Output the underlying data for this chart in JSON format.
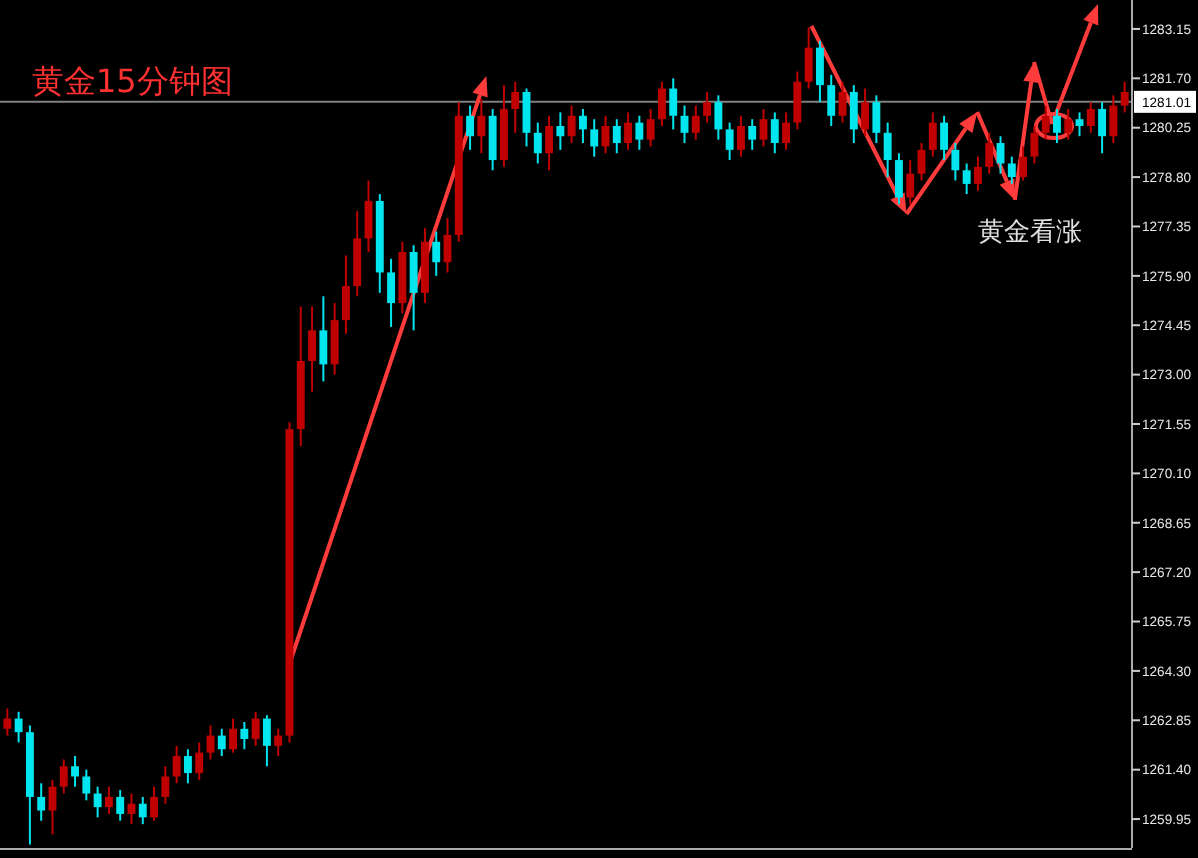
{
  "chart_data": {
    "type": "candlestick",
    "title": "黄金15分钟图",
    "annotations": [
      "黄金看涨"
    ],
    "categories": [
      null,
      null,
      null,
      null,
      null,
      null,
      null,
      null,
      null,
      null,
      null,
      null,
      null,
      null,
      null,
      null,
      null,
      null,
      null,
      null,
      null,
      null,
      null,
      null,
      null,
      null,
      null,
      null,
      null,
      null,
      null,
      null,
      null,
      null,
      null,
      null,
      null,
      null,
      null,
      null,
      null,
      null,
      null,
      null,
      null,
      null,
      null,
      null,
      null,
      null,
      null,
      null,
      null,
      null,
      null,
      null,
      null,
      null,
      null,
      null,
      null,
      null,
      null,
      null,
      null,
      null,
      null,
      null,
      null,
      null,
      null,
      null,
      null,
      null,
      null,
      null,
      null,
      null,
      null,
      null,
      null,
      null,
      null,
      null,
      null,
      null,
      null,
      null,
      null,
      null,
      null,
      null,
      null,
      null,
      null,
      null,
      null,
      null,
      null,
      null
    ],
    "ohlc": [
      [
        1262.6,
        1263.2,
        1262.4,
        1262.9
      ],
      [
        1262.9,
        1263.1,
        1262.2,
        1262.5
      ],
      [
        1262.5,
        1262.7,
        1259.2,
        1260.6
      ],
      [
        1260.6,
        1261.0,
        1259.9,
        1260.2
      ],
      [
        1260.2,
        1261.1,
        1259.5,
        1260.9
      ],
      [
        1260.9,
        1261.7,
        1260.7,
        1261.5
      ],
      [
        1261.5,
        1261.8,
        1260.9,
        1261.2
      ],
      [
        1261.2,
        1261.4,
        1260.5,
        1260.7
      ],
      [
        1260.7,
        1260.9,
        1260.0,
        1260.3
      ],
      [
        1260.3,
        1260.9,
        1260.1,
        1260.6
      ],
      [
        1260.6,
        1260.8,
        1259.9,
        1260.1
      ],
      [
        1260.1,
        1260.7,
        1259.8,
        1260.4
      ],
      [
        1260.4,
        1260.6,
        1259.8,
        1260.0
      ],
      [
        1260.0,
        1260.9,
        1259.9,
        1260.6
      ],
      [
        1260.6,
        1261.5,
        1260.4,
        1261.2
      ],
      [
        1261.2,
        1262.1,
        1261.0,
        1261.8
      ],
      [
        1261.8,
        1262.0,
        1261.0,
        1261.3
      ],
      [
        1261.3,
        1262.2,
        1261.1,
        1261.9
      ],
      [
        1261.9,
        1262.7,
        1261.7,
        1262.4
      ],
      [
        1262.4,
        1262.6,
        1261.8,
        1262.0
      ],
      [
        1262.0,
        1262.9,
        1261.9,
        1262.6
      ],
      [
        1262.6,
        1262.8,
        1262.0,
        1262.3
      ],
      [
        1262.3,
        1263.1,
        1262.1,
        1262.9
      ],
      [
        1262.9,
        1263.0,
        1261.5,
        1262.1
      ],
      [
        1262.1,
        1262.6,
        1261.8,
        1262.4
      ],
      [
        1262.4,
        1271.6,
        1262.2,
        1271.4
      ],
      [
        1271.4,
        1275.0,
        1270.9,
        1273.4
      ],
      [
        1273.4,
        1275.0,
        1272.5,
        1274.3
      ],
      [
        1274.3,
        1275.3,
        1272.8,
        1273.3
      ],
      [
        1273.3,
        1275.1,
        1273.0,
        1274.6
      ],
      [
        1274.6,
        1276.5,
        1274.2,
        1275.6
      ],
      [
        1275.6,
        1277.8,
        1275.3,
        1277.0
      ],
      [
        1277.0,
        1278.7,
        1276.6,
        1278.1
      ],
      [
        1278.1,
        1278.3,
        1275.4,
        1276.0
      ],
      [
        1276.0,
        1276.4,
        1274.4,
        1275.1
      ],
      [
        1275.1,
        1276.9,
        1274.8,
        1276.6
      ],
      [
        1276.6,
        1276.8,
        1274.3,
        1275.4
      ],
      [
        1275.4,
        1277.3,
        1275.1,
        1276.9
      ],
      [
        1276.9,
        1277.2,
        1275.9,
        1276.3
      ],
      [
        1276.3,
        1277.6,
        1276.0,
        1277.1
      ],
      [
        1277.1,
        1281.0,
        1276.9,
        1280.6
      ],
      [
        1280.6,
        1280.9,
        1279.6,
        1280.0
      ],
      [
        1280.0,
        1281.1,
        1279.5,
        1280.6
      ],
      [
        1280.6,
        1280.8,
        1279.0,
        1279.3
      ],
      [
        1279.3,
        1281.5,
        1279.1,
        1280.8
      ],
      [
        1280.8,
        1281.6,
        1280.1,
        1281.3
      ],
      [
        1281.3,
        1281.4,
        1279.7,
        1280.1
      ],
      [
        1280.1,
        1280.4,
        1279.2,
        1279.5
      ],
      [
        1279.5,
        1280.6,
        1279.0,
        1280.3
      ],
      [
        1280.3,
        1280.7,
        1279.6,
        1280.0
      ],
      [
        1280.0,
        1280.9,
        1279.8,
        1280.6
      ],
      [
        1280.6,
        1280.8,
        1279.8,
        1280.2
      ],
      [
        1280.2,
        1280.5,
        1279.4,
        1279.7
      ],
      [
        1279.7,
        1280.6,
        1279.5,
        1280.3
      ],
      [
        1280.3,
        1280.5,
        1279.5,
        1279.8
      ],
      [
        1279.8,
        1280.7,
        1279.6,
        1280.4
      ],
      [
        1280.4,
        1280.6,
        1279.6,
        1279.9
      ],
      [
        1279.9,
        1280.8,
        1279.7,
        1280.5
      ],
      [
        1280.5,
        1281.6,
        1280.3,
        1281.4
      ],
      [
        1281.4,
        1281.7,
        1280.2,
        1280.6
      ],
      [
        1280.6,
        1280.9,
        1279.8,
        1280.1
      ],
      [
        1280.1,
        1280.9,
        1279.9,
        1280.6
      ],
      [
        1280.6,
        1281.3,
        1280.4,
        1281.0
      ],
      [
        1281.0,
        1281.2,
        1279.9,
        1280.2
      ],
      [
        1280.2,
        1280.4,
        1279.3,
        1279.6
      ],
      [
        1279.6,
        1280.6,
        1279.4,
        1280.3
      ],
      [
        1280.3,
        1280.5,
        1279.6,
        1279.9
      ],
      [
        1279.9,
        1280.8,
        1279.7,
        1280.5
      ],
      [
        1280.5,
        1280.7,
        1279.5,
        1279.8
      ],
      [
        1279.8,
        1280.7,
        1279.6,
        1280.4
      ],
      [
        1280.4,
        1281.9,
        1280.2,
        1281.6
      ],
      [
        1281.6,
        1283.2,
        1281.4,
        1282.6
      ],
      [
        1282.6,
        1282.8,
        1281.0,
        1281.5
      ],
      [
        1281.5,
        1281.8,
        1280.3,
        1280.6
      ],
      [
        1280.6,
        1281.6,
        1280.4,
        1281.3
      ],
      [
        1281.3,
        1281.5,
        1279.8,
        1280.2
      ],
      [
        1280.2,
        1281.4,
        1280.0,
        1281.0
      ],
      [
        1281.0,
        1281.2,
        1279.8,
        1280.1
      ],
      [
        1280.1,
        1280.4,
        1278.8,
        1279.3
      ],
      [
        1279.3,
        1279.5,
        1278.0,
        1278.2
      ],
      [
        1278.2,
        1279.3,
        1278.0,
        1278.9
      ],
      [
        1278.9,
        1279.8,
        1278.7,
        1279.6
      ],
      [
        1279.6,
        1280.7,
        1279.4,
        1280.4
      ],
      [
        1280.4,
        1280.6,
        1279.3,
        1279.6
      ],
      [
        1279.6,
        1279.8,
        1278.7,
        1279.0
      ],
      [
        1279.0,
        1279.2,
        1278.3,
        1278.6
      ],
      [
        1278.6,
        1279.4,
        1278.4,
        1279.1
      ],
      [
        1279.1,
        1280.1,
        1278.9,
        1279.8
      ],
      [
        1279.8,
        1280.0,
        1278.9,
        1279.2
      ],
      [
        1279.2,
        1279.4,
        1278.6,
        1278.8
      ],
      [
        1278.8,
        1279.7,
        1278.7,
        1279.4
      ],
      [
        1279.4,
        1280.3,
        1279.2,
        1280.1
      ],
      [
        1280.1,
        1280.9,
        1279.9,
        1280.6
      ],
      [
        1280.6,
        1280.8,
        1279.8,
        1280.1
      ],
      [
        1280.1,
        1280.8,
        1279.9,
        1280.5
      ],
      [
        1280.5,
        1280.7,
        1280.0,
        1280.3
      ],
      [
        1280.3,
        1281.0,
        1280.1,
        1280.8
      ],
      [
        1280.8,
        1281.0,
        1279.5,
        1280.0
      ],
      [
        1280.0,
        1281.2,
        1279.8,
        1280.9
      ],
      [
        1280.9,
        1281.6,
        1280.7,
        1281.3
      ]
    ],
    "colors": [
      "#c00000",
      "#00e5ee",
      "#00e5ee",
      "#00e5ee",
      "#c00000",
      "#c00000",
      "#00e5ee",
      "#00e5ee",
      "#00e5ee",
      "#c00000",
      "#00e5ee",
      "#c00000",
      "#00e5ee",
      "#c00000",
      "#c00000",
      "#c00000",
      "#00e5ee",
      "#c00000",
      "#c00000",
      "#00e5ee",
      "#c00000",
      "#00e5ee",
      "#c00000",
      "#00e5ee",
      "#c00000",
      "#c00000",
      "#c00000",
      "#c00000",
      "#00e5ee",
      "#c00000",
      "#c00000",
      "#c00000",
      "#c00000",
      "#00e5ee",
      "#00e5ee",
      "#c00000",
      "#00e5ee",
      "#c00000",
      "#00e5ee",
      "#c00000",
      "#c00000",
      "#00e5ee",
      "#c00000",
      "#00e5ee",
      "#c00000",
      "#c00000",
      "#00e5ee",
      "#00e5ee",
      "#c00000",
      "#00e5ee",
      "#c00000",
      "#00e5ee",
      "#00e5ee",
      "#c00000",
      "#00e5ee",
      "#c00000",
      "#00e5ee",
      "#c00000",
      "#c00000",
      "#00e5ee",
      "#00e5ee",
      "#c00000",
      "#c00000",
      "#00e5ee",
      "#00e5ee",
      "#c00000",
      "#00e5ee",
      "#c00000",
      "#00e5ee",
      "#c00000",
      "#c00000",
      "#c00000",
      "#00e5ee",
      "#00e5ee",
      "#c00000",
      "#00e5ee",
      "#c00000",
      "#00e5ee",
      "#00e5ee",
      "#00e5ee",
      "#c00000",
      "#c00000",
      "#c00000",
      "#00e5ee",
      "#00e5ee",
      "#00e5ee",
      "#c00000",
      "#c00000",
      "#00e5ee",
      "#00e5ee",
      "#c00000",
      "#c00000",
      "#c00000",
      "#00e5ee",
      "#c00000",
      "#00e5ee",
      "#c00000",
      "#00e5ee",
      "#c00000",
      "#c00000"
    ],
    "ylim": [
      1259.1,
      1284.0
    ],
    "yticks": [
      1283.15,
      {
        "value": 1281.7,
        "label": "1281.70"
      },
      1280.25,
      {
        "value": 1278.8,
        "label": "1278.80"
      },
      1277.35,
      {
        "value": 1275.9,
        "label": "1275.90"
      },
      1274.45,
      {
        "value": 1273,
        "label": "1273.00"
      },
      1271.55,
      {
        "value": 1270.1,
        "label": "1270.10"
      },
      1268.65,
      {
        "value": 1267.2,
        "label": "1267.20"
      },
      1265.75,
      {
        "value": 1264.3,
        "label": "1264.30"
      },
      1262.85,
      {
        "value": 1261.4,
        "label": "1261.40"
      },
      1259.95
    ],
    "ref_lines": [
      {
        "axis": "y",
        "value": 1281.01,
        "label": "1281.01",
        "color": "#808080"
      }
    ],
    "grid": false
  }
}
